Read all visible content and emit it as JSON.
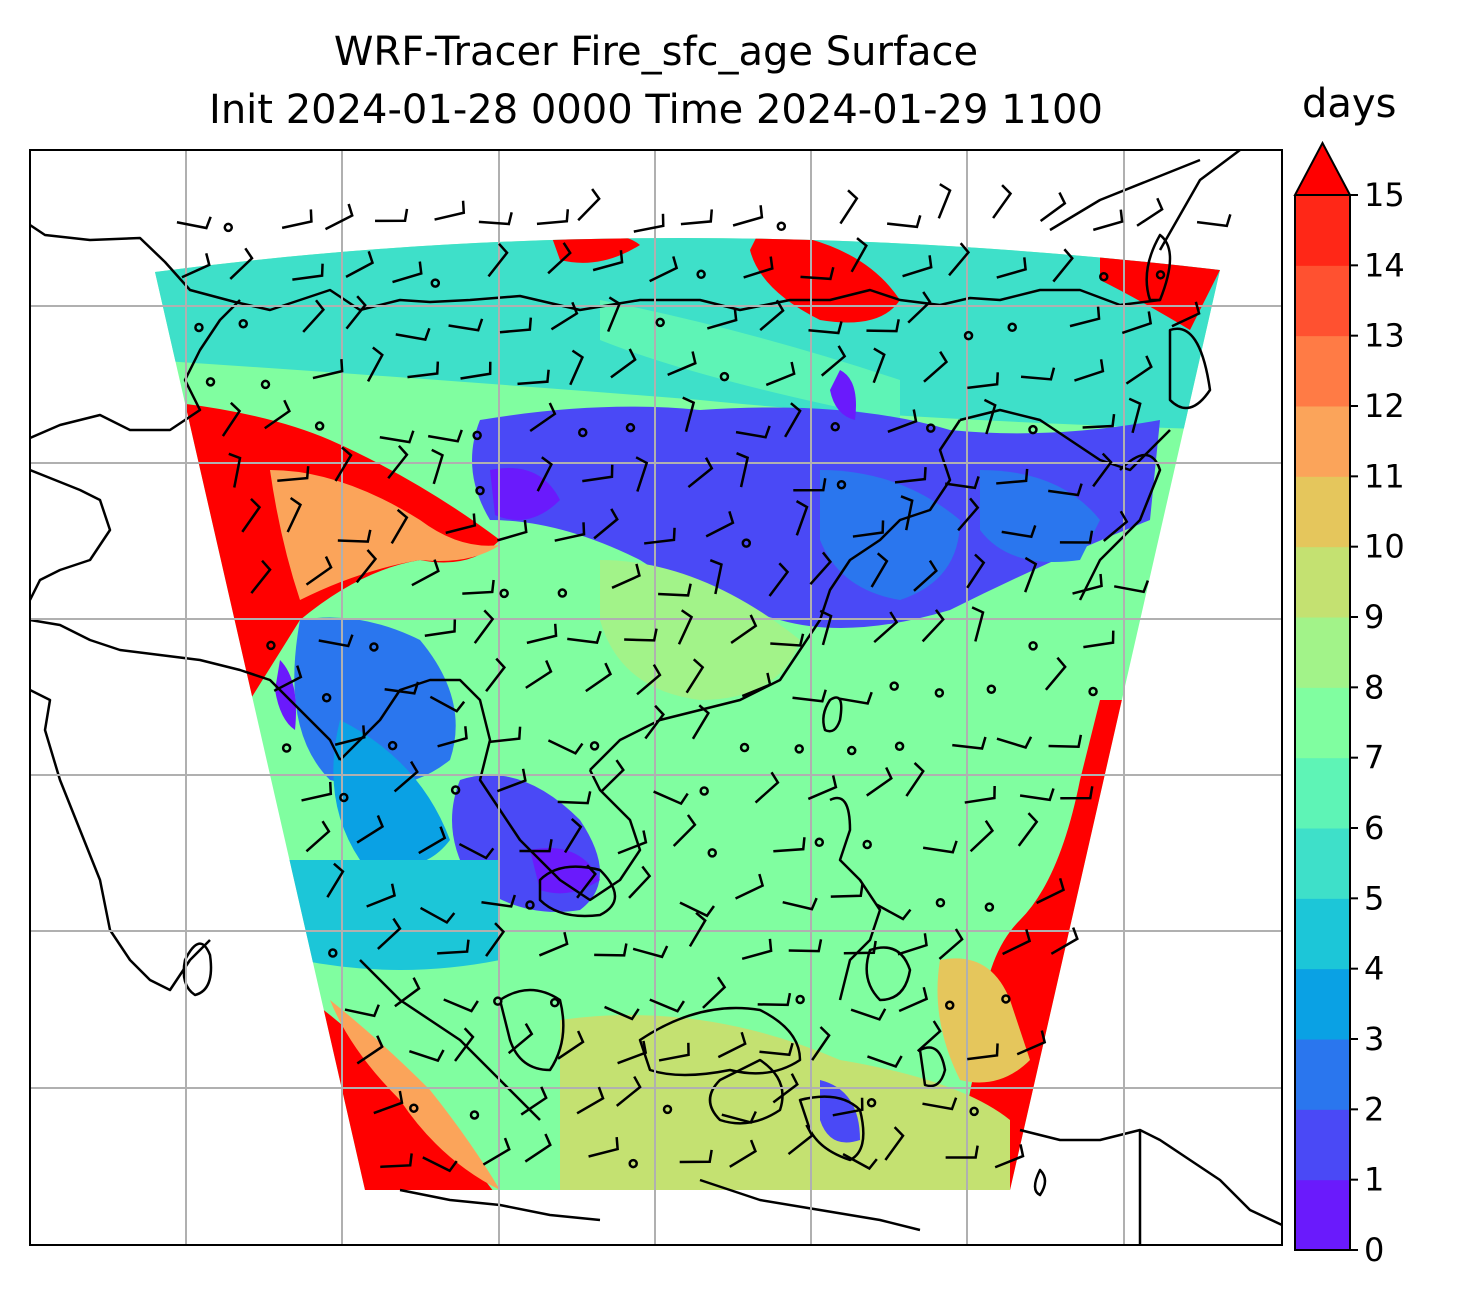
{
  "title_line1": "WRF-Tracer Fire_sfc_age Surface",
  "title_line2": "Init 2024-01-28 0000 Time 2024-01-29 1100",
  "colorbar": {
    "units": "days",
    "ticks": [
      "0",
      "1",
      "2",
      "3",
      "4",
      "5",
      "6",
      "7",
      "8",
      "9",
      "10",
      "11",
      "12",
      "13",
      "14",
      "15"
    ],
    "extend": "max",
    "colors": [
      "#6a1afc",
      "#4a49f6",
      "#2a76ee",
      "#0aa1e4",
      "#1cc6d8",
      "#3ee0c9",
      "#5ef4b6",
      "#80fea0",
      "#a2f389",
      "#c4e171",
      "#e5c65c",
      "#fba45a",
      "#ff7b45",
      "#ff5130",
      "#ff2717",
      "#ff0000"
    ]
  },
  "map": {
    "type": "map",
    "field": "Fire_sfc_age",
    "level": "Surface",
    "units": "days",
    "gridlines": true,
    "wind_barbs": true,
    "colors": {
      "coastline": "#000000",
      "gridline": "#b0b0b0",
      "ocean_background": "#ffffff"
    }
  }
}
